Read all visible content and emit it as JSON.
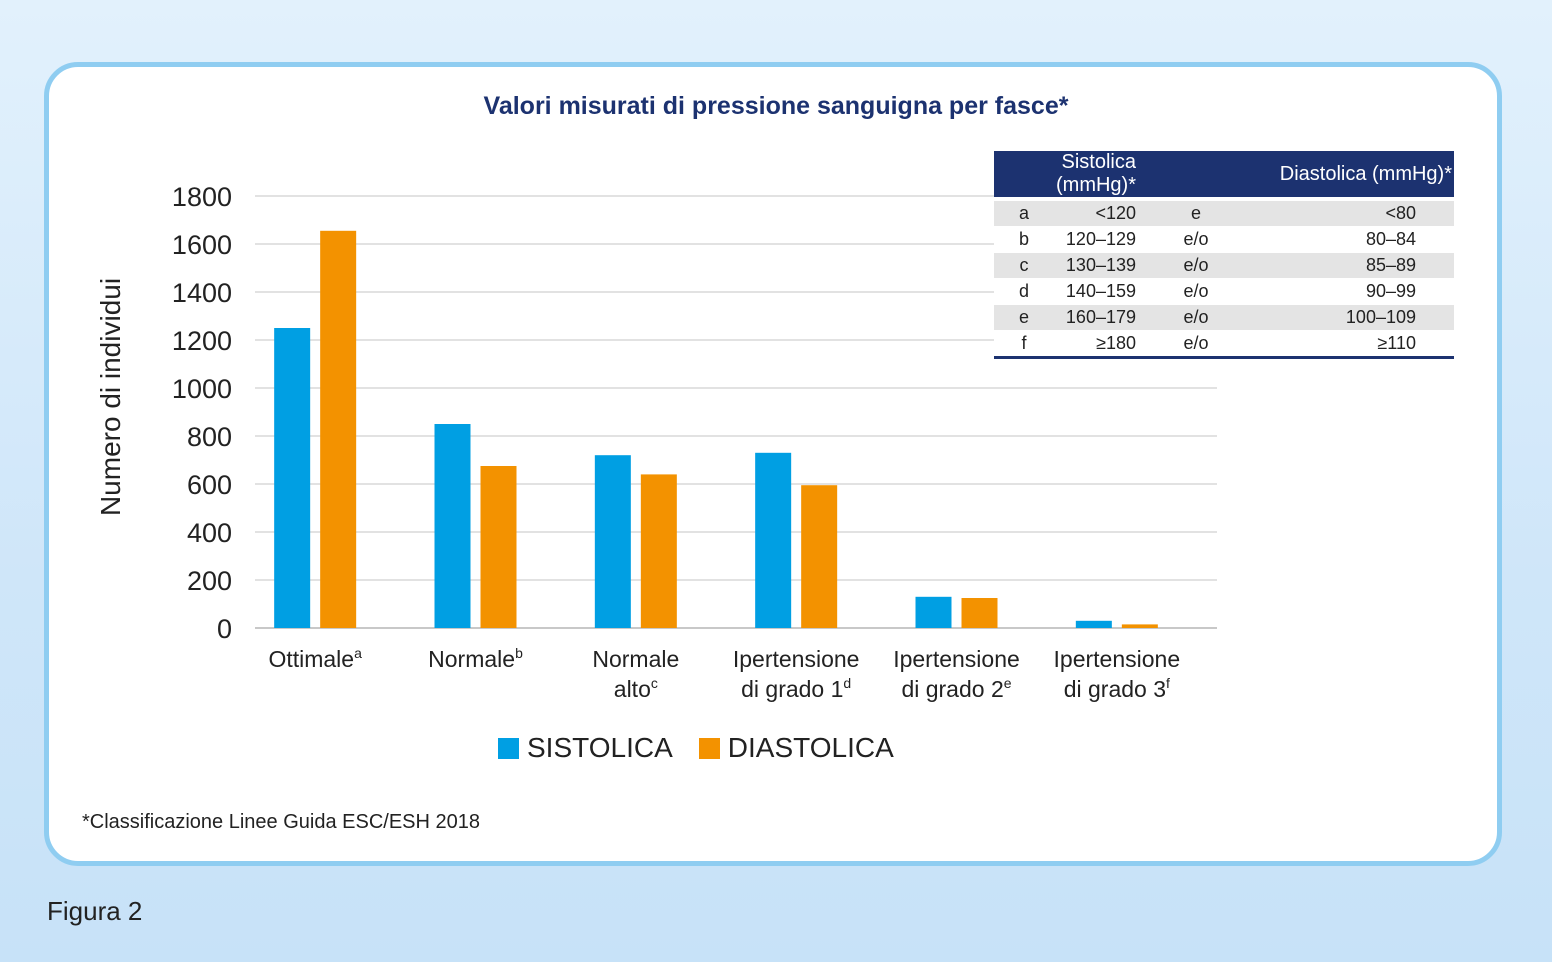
{
  "chart_data": {
    "type": "bar",
    "title": "Valori misurati di pressione sanguigna per fasce*",
    "ylabel": "Numero di individui",
    "xlabel": "",
    "ylim": [
      0,
      1800
    ],
    "yticks": [
      0,
      200,
      400,
      600,
      800,
      1000,
      1200,
      1400,
      1600,
      1800
    ],
    "grid": true,
    "legend_position": "bottom",
    "categories": [
      {
        "label": "Ottimale",
        "sup": "a"
      },
      {
        "label": "Normale",
        "sup": "b"
      },
      {
        "label": "Normale|alto",
        "sup": "c"
      },
      {
        "label": "Ipertensione|di grado 1",
        "sup": "d"
      },
      {
        "label": "Ipertensione|di grado 2",
        "sup": "e"
      },
      {
        "label": "Ipertensione|di grado 3",
        "sup": "f"
      }
    ],
    "series": [
      {
        "name": "SISTOLICA",
        "color": "#009fe3",
        "values": [
          1250,
          850,
          720,
          730,
          130,
          30
        ]
      },
      {
        "name": "DIASTOLICA",
        "color": "#f39200",
        "values": [
          1655,
          675,
          640,
          595,
          125,
          15
        ]
      }
    ]
  },
  "reference_table": {
    "headers": [
      "",
      "Sistolica (mmHg)*",
      "Diastolica (mmHg)*"
    ],
    "rows": [
      {
        "letter": "a",
        "sys": "<120",
        "op": "e",
        "dia": "<80"
      },
      {
        "letter": "b",
        "sys": "120–129",
        "op": "e/o",
        "dia": "80–84"
      },
      {
        "letter": "c",
        "sys": "130–139",
        "op": "e/o",
        "dia": "85–89"
      },
      {
        "letter": "d",
        "sys": "140–159",
        "op": "e/o",
        "dia": "90–99"
      },
      {
        "letter": "e",
        "sys": "160–179",
        "op": "e/o",
        "dia": "100–109"
      },
      {
        "letter": "f",
        "sys": "≥180",
        "op": "e/o",
        "dia": "≥110"
      }
    ]
  },
  "footnote": "*Classificazione Linee Guida ESC/ESH 2018",
  "figure_label": "Figura 2"
}
